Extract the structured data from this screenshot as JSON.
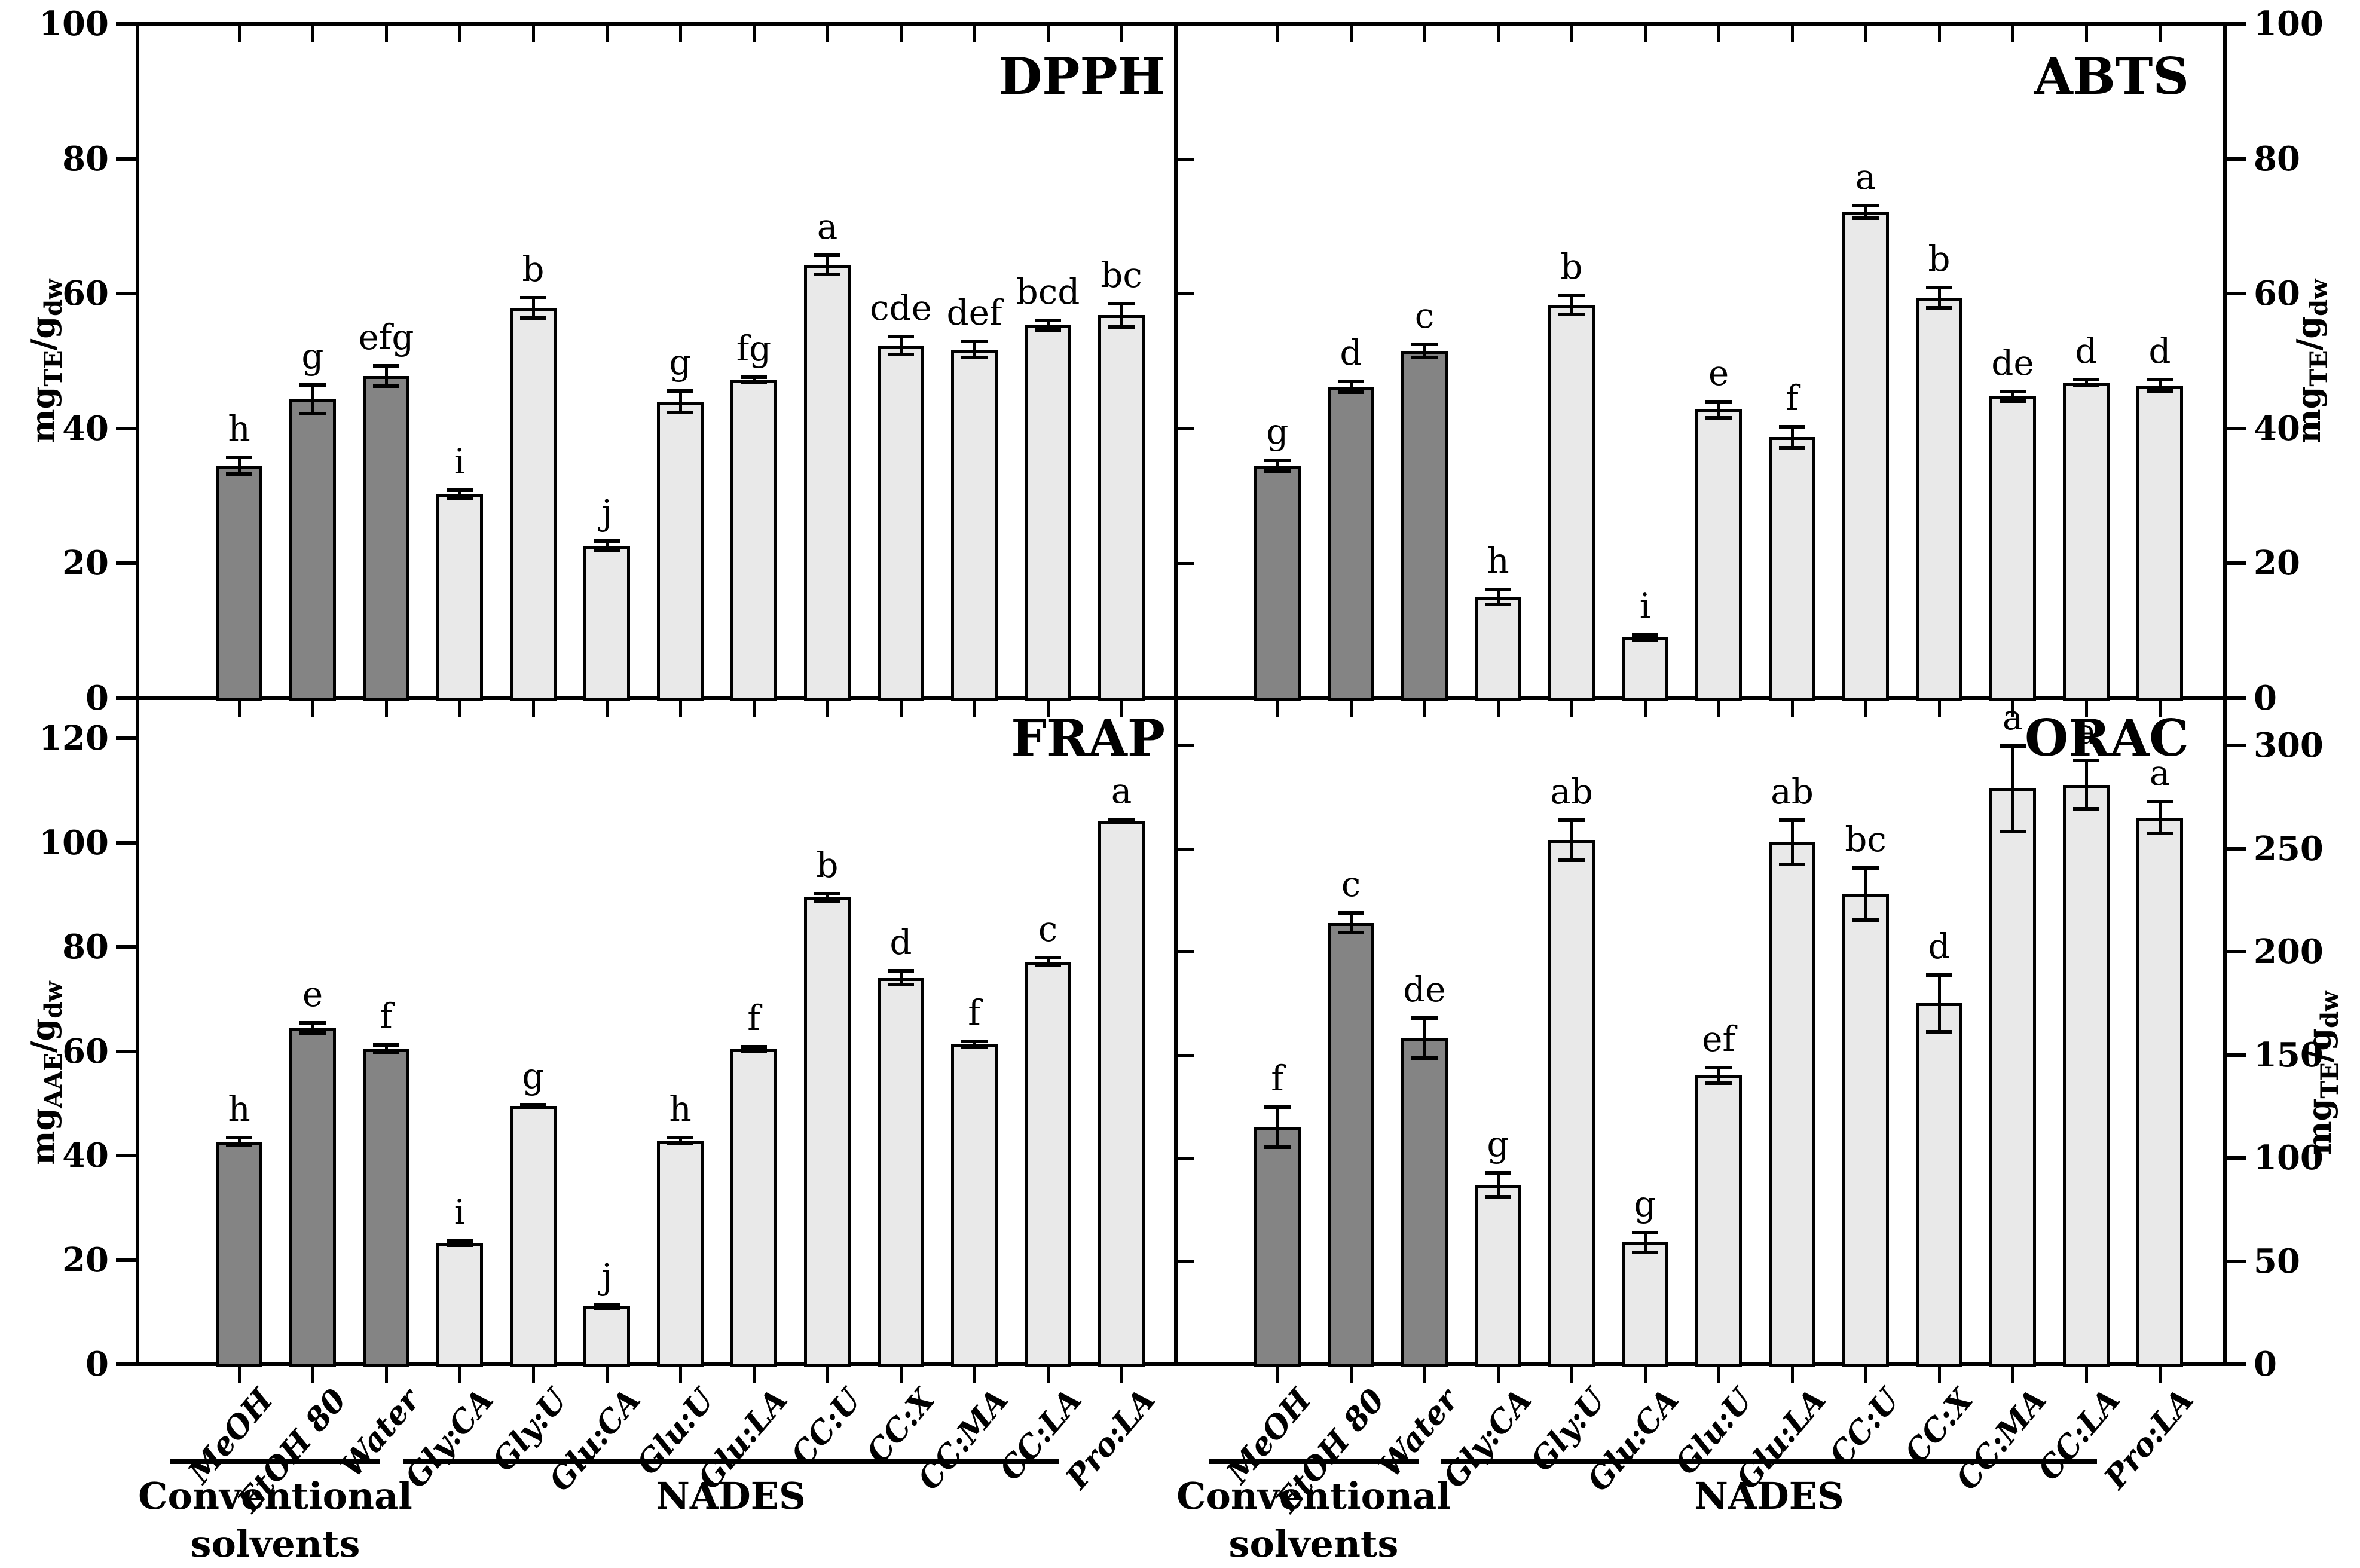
{
  "figure": {
    "background": "#ffffff",
    "axis_color": "#000000",
    "bar_colors": {
      "conventional": "#848484",
      "nades": "#e9e9e9",
      "border": "#000000"
    },
    "categories": [
      "MeOH",
      "EtOH 80",
      "Water",
      "Gly:CA",
      "Gly:U",
      "Glu:CA",
      "Glu:U",
      "Glu:LA",
      "CC:U",
      "CC:X",
      "CC:MA",
      "CC:LA",
      "Pro:LA"
    ],
    "category_groups": [
      {
        "label_lines": [
          "Conventional",
          "solvents"
        ],
        "start": 0,
        "end": 2
      },
      {
        "label_lines": [
          "NADES"
        ],
        "start": 3,
        "end": 12
      }
    ]
  },
  "chart_data": [
    {
      "id": "dpph",
      "type": "bar",
      "title": "DPPH",
      "panel": "top-left",
      "y_axis_side": "left",
      "grid": false,
      "legend": false,
      "ylabel_parts": [
        {
          "t": "mg",
          "sub": false
        },
        {
          "t": "TE",
          "sub": true
        },
        {
          "t": "/g",
          "sub": false
        },
        {
          "t": "dw",
          "sub": true
        }
      ],
      "ylim": [
        0,
        100
      ],
      "ymax_display": 100,
      "yticks": [
        0,
        20,
        40,
        60,
        80,
        100
      ],
      "values": [
        34.5,
        44.3,
        47.8,
        30.2,
        57.9,
        22.6,
        44.0,
        47.2,
        64.3,
        52.3,
        51.7,
        55.3,
        56.8
      ],
      "errors": [
        1.3,
        2.2,
        1.6,
        0.7,
        1.6,
        0.8,
        1.7,
        0.5,
        1.5,
        1.4,
        1.3,
        0.8,
        1.8
      ],
      "sig_letters": [
        "h",
        "g",
        "efg",
        "i",
        "b",
        "j",
        "g",
        "fg",
        "a",
        "cde",
        "def",
        "bcd",
        "bc"
      ]
    },
    {
      "id": "abts",
      "type": "bar",
      "title": "ABTS",
      "panel": "top-right",
      "y_axis_side": "right",
      "grid": false,
      "legend": false,
      "ylabel_parts": [
        {
          "t": "mg",
          "sub": false
        },
        {
          "t": "TE",
          "sub": true
        },
        {
          "t": "/g",
          "sub": false
        },
        {
          "t": "dw",
          "sub": true
        }
      ],
      "ylim": [
        0,
        100
      ],
      "ymax_display": 100,
      "yticks": [
        0,
        20,
        40,
        60,
        80,
        100
      ],
      "values": [
        34.5,
        46.2,
        51.5,
        15.0,
        58.3,
        9.0,
        42.8,
        38.7,
        72.1,
        59.4,
        44.8,
        46.8,
        46.4
      ],
      "errors": [
        0.9,
        0.9,
        1.1,
        1.2,
        1.5,
        0.5,
        1.3,
        1.6,
        1.0,
        1.6,
        0.8,
        0.5,
        0.9
      ],
      "sig_letters": [
        "g",
        "d",
        "c",
        "h",
        "b",
        "i",
        "e",
        "f",
        "a",
        "b",
        "de",
        "d",
        "d"
      ]
    },
    {
      "id": "frap",
      "type": "bar",
      "title": "FRAP",
      "panel": "bottom-left",
      "y_axis_side": "left",
      "grid": false,
      "legend": false,
      "ylabel_parts": [
        {
          "t": "mg",
          "sub": false
        },
        {
          "t": "AAE",
          "sub": true
        },
        {
          "t": "/g",
          "sub": false
        },
        {
          "t": "dw",
          "sub": true
        }
      ],
      "ylim": [
        0,
        127.7
      ],
      "ymax_display": 127.7,
      "yticks": [
        0,
        20,
        40,
        60,
        80,
        100,
        120
      ],
      "values": [
        42.7,
        64.5,
        60.5,
        23.2,
        49.5,
        11.1,
        42.9,
        60.5,
        89.5,
        74.1,
        61.4,
        77.2,
        104.2
      ],
      "errors": [
        0.9,
        1.1,
        0.8,
        0.5,
        0.4,
        0.4,
        0.7,
        0.5,
        0.8,
        1.4,
        0.6,
        0.9,
        0.4
      ],
      "sig_letters": [
        "h",
        "e",
        "f",
        "i",
        "g",
        "j",
        "h",
        "f",
        "b",
        "d",
        "f",
        "c",
        "a"
      ]
    },
    {
      "id": "orac",
      "type": "bar",
      "title": "ORAC",
      "panel": "bottom-right",
      "y_axis_side": "right",
      "grid": false,
      "legend": false,
      "ylabel_parts": [
        {
          "t": "mg",
          "sub": false
        },
        {
          "t": "TE",
          "sub": true
        },
        {
          "t": "/g",
          "sub": false
        },
        {
          "t": "dw",
          "sub": true
        }
      ],
      "ylim": [
        0,
        322.9
      ],
      "ymax_display": 322.9,
      "yticks": [
        0,
        50,
        100,
        150,
        200,
        250,
        300
      ],
      "values": [
        115,
        214,
        158,
        87,
        254,
        59,
        140,
        253,
        228,
        175,
        279,
        281,
        265
      ],
      "errors": [
        10,
        5,
        10,
        6,
        10,
        5,
        4,
        11,
        13,
        14,
        21,
        12,
        8
      ],
      "sig_letters": [
        "f",
        "c",
        "de",
        "g",
        "ab",
        "g",
        "ef",
        "ab",
        "bc",
        "d",
        "a",
        "a",
        "a"
      ]
    }
  ]
}
